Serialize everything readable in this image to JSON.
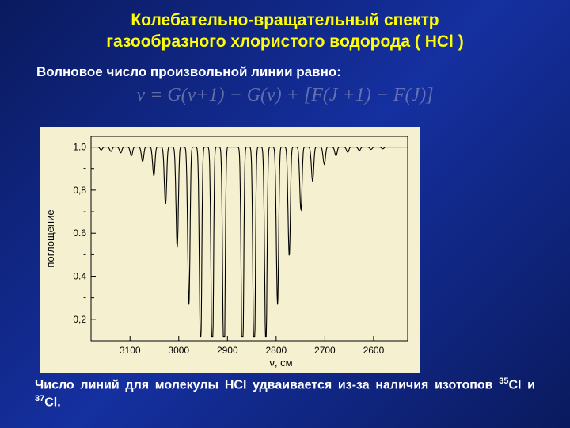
{
  "title_line1": "Колебательно-вращательный спектр",
  "title_line2": "газообразного хлористого водорода  ( HCl )",
  "subtitle": "Волновое число произвольной линии равно:",
  "formula_parts": {
    "nu": "ν",
    "eq": " = ",
    "g1": "G(v+1) − G(v) + ",
    "lb": "[",
    "f1": "F(J +1) − F(J)",
    "rb": "]"
  },
  "chart": {
    "type": "line",
    "ylabel": "поглощение",
    "xlabel": "ν, см",
    "background_color": "#f5f0d0",
    "axis_color": "#000000",
    "line_color": "#000000",
    "tick_fontsize": 12,
    "label_fontsize": 13,
    "x_ticks": [
      3100,
      3000,
      2900,
      2800,
      2700,
      2600
    ],
    "y_ticks_major": [
      1.0,
      0.8,
      0.6,
      0.4,
      0.2
    ],
    "y_ticks_labels": [
      "1.0",
      "0,8",
      "0.6",
      "0.4",
      "0,2"
    ],
    "xlim": [
      3180,
      2530
    ],
    "ylim": [
      0.1,
      1.05
    ],
    "lines": [
      {
        "center": 3160,
        "depth": 0.01
      },
      {
        "center": 3140,
        "depth": 0.015
      },
      {
        "center": 3120,
        "depth": 0.02
      },
      {
        "center": 3098,
        "depth": 0.03
      },
      {
        "center": 3075,
        "depth": 0.05
      },
      {
        "center": 3052,
        "depth": 0.1
      },
      {
        "center": 3028,
        "depth": 0.2
      },
      {
        "center": 3004,
        "depth": 0.35
      },
      {
        "center": 2980,
        "depth": 0.55
      },
      {
        "center": 2956,
        "depth": 0.72
      },
      {
        "center": 2932,
        "depth": 0.82
      },
      {
        "center": 2908,
        "depth": 0.85
      },
      {
        "center": 2870,
        "depth": 0.85
      },
      {
        "center": 2846,
        "depth": 0.82
      },
      {
        "center": 2822,
        "depth": 0.72
      },
      {
        "center": 2798,
        "depth": 0.55
      },
      {
        "center": 2774,
        "depth": 0.38
      },
      {
        "center": 2750,
        "depth": 0.22
      },
      {
        "center": 2726,
        "depth": 0.12
      },
      {
        "center": 2702,
        "depth": 0.06
      },
      {
        "center": 2678,
        "depth": 0.03
      },
      {
        "center": 2654,
        "depth": 0.018
      },
      {
        "center": 2630,
        "depth": 0.012
      },
      {
        "center": 2606,
        "depth": 0.008
      },
      {
        "center": 2582,
        "depth": 0.006
      }
    ],
    "line_halfwidth": 4.5
  },
  "footnote": {
    "pre": "Число линий для молекулы HCl удваивается из-за наличия изотопов ",
    "iso1_sup": "35",
    "iso1": "Cl  и  ",
    "iso2_sup": "37",
    "iso2": "Cl."
  }
}
